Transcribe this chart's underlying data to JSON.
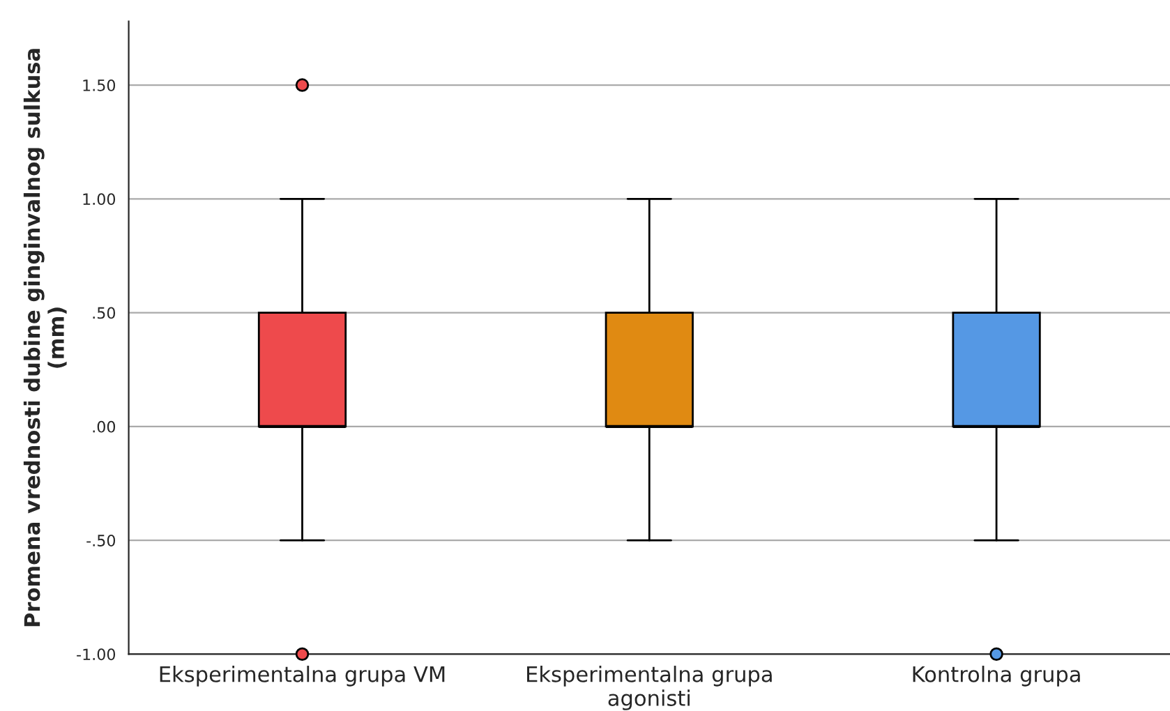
{
  "chart_data": {
    "type": "box",
    "ylabel": "Promena vrednosti dubine ginginvalnog sulkusa\n(mm)",
    "categories": [
      "Eksperimentalna grupa VM",
      "Eksperimentalna grupa\nagonisti",
      "Kontrolna grupa"
    ],
    "colors": [
      "#ee4a4c",
      "#e08a12",
      "#5598e4"
    ],
    "boxes": [
      {
        "low": -0.5,
        "q1": 0.0,
        "median": 0.0,
        "q3": 0.5,
        "high": 1.0,
        "outliers": [
          1.5,
          -1.0
        ]
      },
      {
        "low": -0.5,
        "q1": 0.0,
        "median": 0.0,
        "q3": 0.5,
        "high": 1.0
      },
      {
        "low": -0.5,
        "q1": 0.0,
        "median": 0.0,
        "q3": 0.5,
        "high": 1.0,
        "outliers": [
          -1.0
        ]
      }
    ],
    "ylim": [
      -1.0,
      1.78
    ],
    "yticks": [
      {
        "value": -1.0,
        "label": "-1.00"
      },
      {
        "value": -0.5,
        "label": "-.50"
      },
      {
        "value": 0.0,
        "label": ".00"
      },
      {
        "value": 0.5,
        "label": ".50"
      },
      {
        "value": 1.0,
        "label": "1.00"
      },
      {
        "value": 1.5,
        "label": "1.50"
      }
    ],
    "grid": "y"
  }
}
